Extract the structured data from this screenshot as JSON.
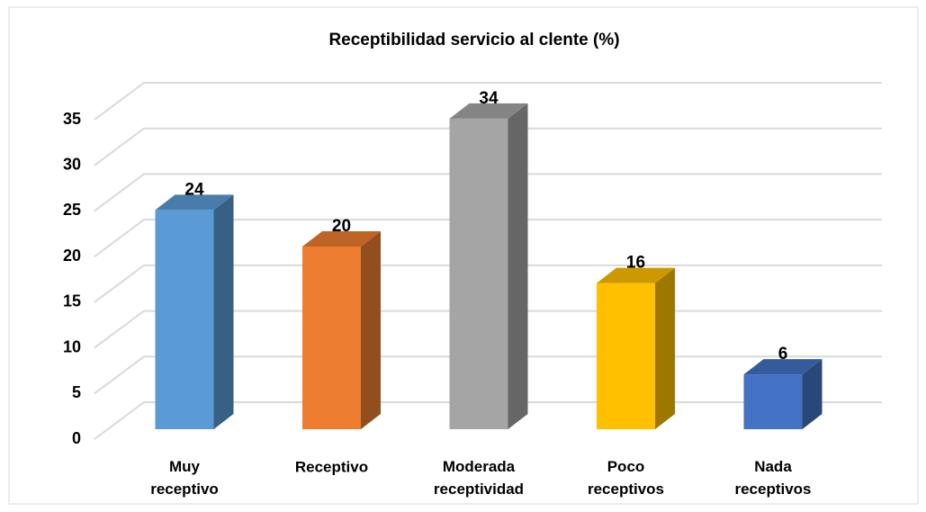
{
  "chart_data": {
    "type": "bar3d",
    "title": "Receptibilidad servicio al clente (%)",
    "categories": [
      "Muy receptivo",
      "Receptivo",
      "Moderada receptividad",
      "Poco receptivos",
      "Nada receptivos"
    ],
    "values": [
      24,
      20,
      34,
      16,
      6
    ],
    "colors": [
      "#5b9bd5",
      "#ed7d31",
      "#a5a5a5",
      "#ffc000",
      "#4472c4"
    ],
    "ylim": [
      0,
      35
    ],
    "yticks": [
      0,
      5,
      10,
      15,
      20,
      25,
      30,
      35
    ],
    "grid": true
  }
}
